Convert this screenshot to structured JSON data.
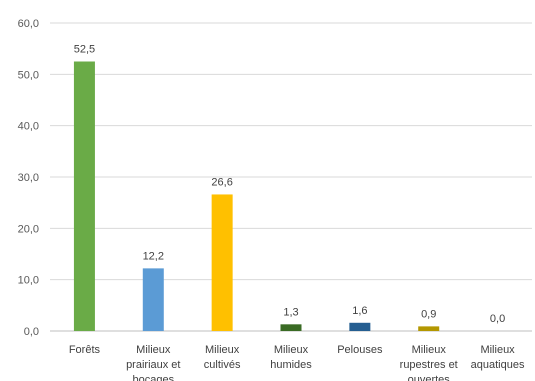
{
  "chart_data": {
    "type": "bar",
    "title": "",
    "xlabel": "",
    "ylabel": "",
    "categories": [
      [
        "Forêts"
      ],
      [
        "Milieux",
        "prairiaux et",
        "bocages"
      ],
      [
        "Milieux",
        "cultivés"
      ],
      [
        "Milieux",
        "humides"
      ],
      [
        "Pelouses"
      ],
      [
        "Milieux",
        "rupestres et",
        "ouvertes"
      ],
      [
        "Milieux",
        "aquatiques"
      ]
    ],
    "values": [
      52.5,
      12.2,
      26.6,
      1.3,
      1.6,
      0.9,
      0.0
    ],
    "value_labels": [
      "52,5",
      "12,2",
      "26,6",
      "1,3",
      "1,6",
      "0,9",
      "0,0"
    ],
    "bar_colors": [
      "#6aab47",
      "#5b9bd5",
      "#ffc000",
      "#3a6b24",
      "#255e91",
      "#b39700",
      "#6aab47"
    ],
    "ylim": [
      0,
      60
    ],
    "y_ticks": [
      0,
      10,
      20,
      30,
      40,
      50,
      60
    ],
    "y_tick_labels": [
      "0,0",
      "10,0",
      "20,0",
      "30,0",
      "40,0",
      "50,0",
      "60,0"
    ],
    "grid": true,
    "legend": false
  },
  "colors": {
    "grid": "#d9d9d9",
    "baseline": "#bfbfbf"
  }
}
